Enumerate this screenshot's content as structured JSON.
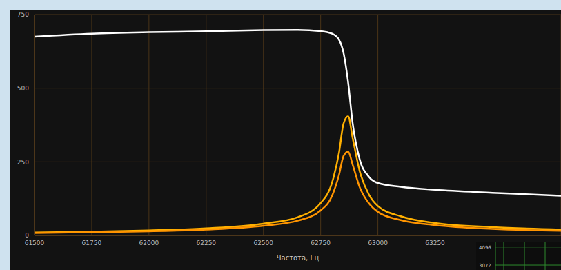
{
  "chart_data": [
    {
      "type": "line",
      "xlabel": "Частота, Гц",
      "x": [
        61500,
        61750,
        62000,
        62250,
        62500,
        62650,
        62750,
        62800,
        62830,
        62850,
        62870,
        62890,
        62920,
        62960,
        63000,
        63100,
        63250,
        63500,
        63800
      ],
      "series": [
        {
          "color": "#ffffff",
          "values": [
            675,
            685,
            690,
            693,
            697,
            698,
            694,
            685,
            665,
            620,
            520,
            380,
            260,
            200,
            178,
            165,
            155,
            145,
            135
          ]
        },
        {
          "color": "#ffb000",
          "values": [
            10,
            13,
            17,
            24,
            40,
            62,
            110,
            180,
            280,
            380,
            405,
            330,
            220,
            140,
            100,
            65,
            42,
            28,
            20
          ]
        },
        {
          "color": "#ff9400",
          "values": [
            8,
            11,
            14,
            20,
            33,
            50,
            85,
            135,
            205,
            270,
            285,
            240,
            165,
            110,
            80,
            52,
            35,
            22,
            16
          ]
        }
      ],
      "xlim": [
        61500,
        63800
      ],
      "xticks": [
        61500,
        61750,
        62000,
        62250,
        62500,
        62750,
        63000,
        63250
      ],
      "ylim": [
        0,
        750
      ],
      "yticks": [
        0,
        250,
        500,
        750
      ],
      "grid": true
    },
    {
      "type": "line",
      "ylim": [
        2800,
        4400
      ],
      "yticks": [
        3072,
        4096
      ],
      "grid": true,
      "series": []
    }
  ]
}
